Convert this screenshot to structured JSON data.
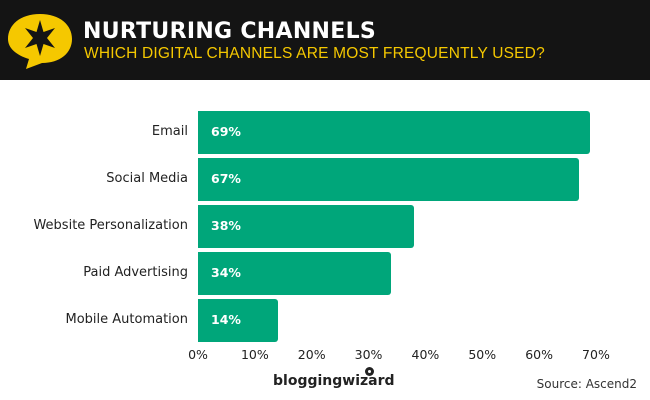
{
  "header": {
    "title": "NURTURING CHANNELS",
    "subtitle": "WHICH DIGITAL CHANNELS ARE MOST FREQUENTLY USED?",
    "logo_icon": "star-speech-bubble-icon",
    "background_color": "#141414",
    "accent_color": "#f5c800"
  },
  "chart_data": {
    "type": "bar",
    "orientation": "horizontal",
    "title": "NURTURING CHANNELS",
    "subtitle": "WHICH DIGITAL CHANNELS ARE MOST FREQUENTLY USED?",
    "categories": [
      "Email",
      "Social Media",
      "Website Personalization",
      "Paid Advertising",
      "Mobile Automation"
    ],
    "values": [
      69,
      67,
      38,
      34,
      14
    ],
    "value_labels": [
      "69%",
      "67%",
      "38%",
      "34%",
      "14%"
    ],
    "xlabel": "",
    "ylabel": "",
    "xlim": [
      0,
      70
    ],
    "x_ticks": [
      "0%",
      "10%",
      "20%",
      "30%",
      "40%",
      "50%",
      "60%",
      "70%"
    ],
    "grid": false,
    "legend": null,
    "bar_color": "#00a67a"
  },
  "footer": {
    "brand": "bloggingwizard",
    "source": "Source: Ascend2"
  }
}
